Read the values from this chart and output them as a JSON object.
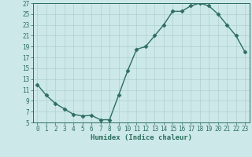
{
  "x": [
    0,
    1,
    2,
    3,
    4,
    5,
    6,
    7,
    8,
    9,
    10,
    11,
    12,
    13,
    14,
    15,
    16,
    17,
    18,
    19,
    20,
    21,
    22,
    23
  ],
  "y": [
    12,
    10,
    8.5,
    7.5,
    6.5,
    6.2,
    6.3,
    5.5,
    5.5,
    10,
    14.5,
    18.5,
    19,
    21,
    23,
    25.5,
    25.5,
    26.5,
    27,
    26.5,
    25,
    23,
    21,
    18
  ],
  "xlabel": "Humidex (Indice chaleur)",
  "xlim": [
    -0.5,
    23.5
  ],
  "ylim": [
    5,
    27
  ],
  "yticks": [
    5,
    7,
    9,
    11,
    13,
    15,
    17,
    19,
    21,
    23,
    25,
    27
  ],
  "xticks": [
    0,
    1,
    2,
    3,
    4,
    5,
    6,
    7,
    8,
    9,
    10,
    11,
    12,
    13,
    14,
    15,
    16,
    17,
    18,
    19,
    20,
    21,
    22,
    23
  ],
  "line_color": "#2d6e5e",
  "marker": "D",
  "marker_size": 2.5,
  "bg_color": "#cce8e8",
  "grid_color": "#b0d0d0",
  "axis_color": "#2d6e5e",
  "label_color": "#2d6e5e",
  "xlabel_fontsize": 6.5,
  "tick_fontsize": 5.5,
  "linewidth": 1.0
}
